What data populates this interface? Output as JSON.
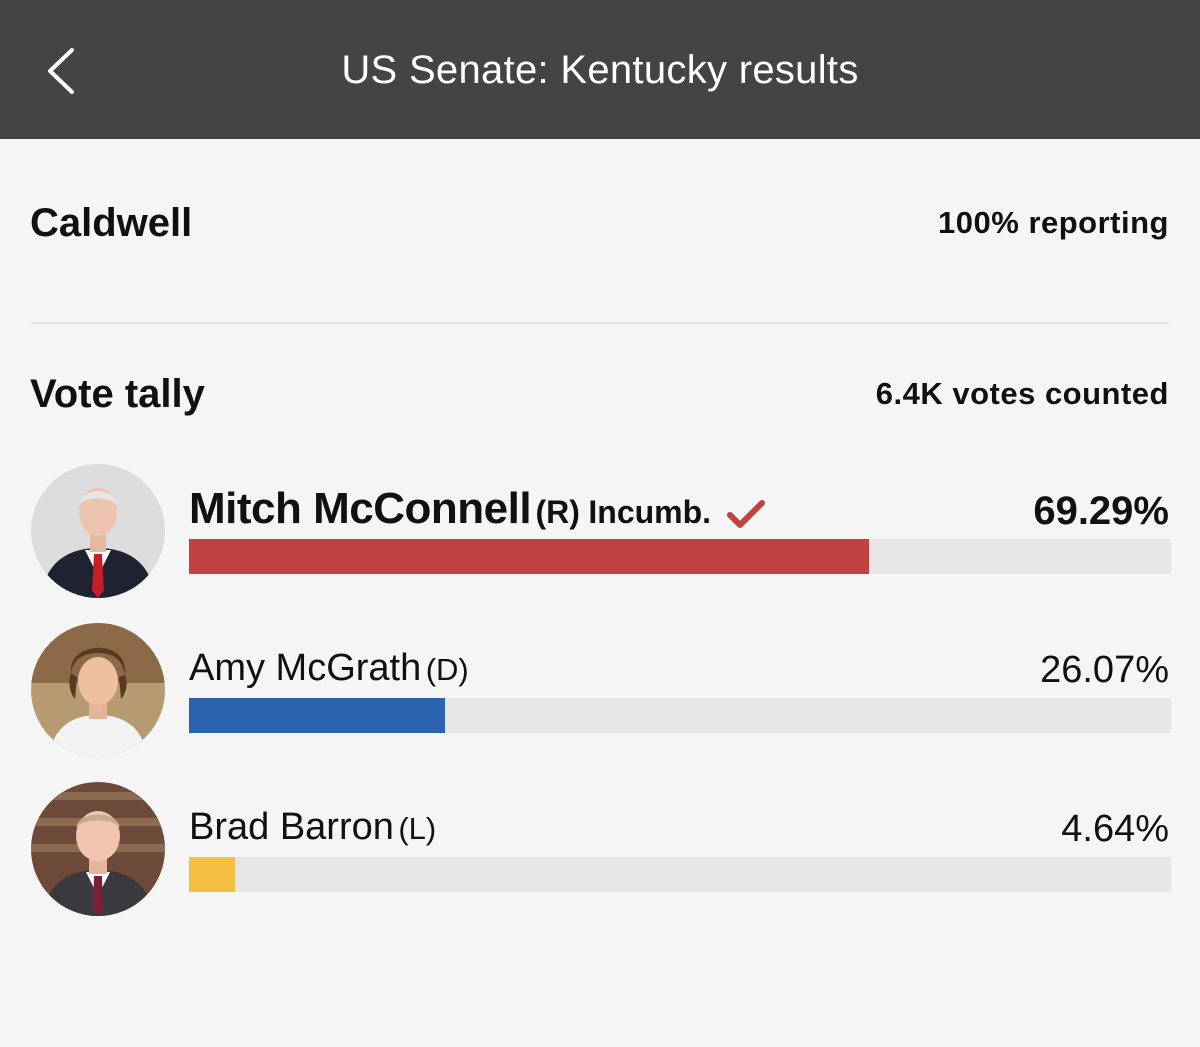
{
  "header": {
    "title": "US Senate: Kentucky results"
  },
  "county": {
    "name": "Caldwell",
    "reporting": "100% reporting"
  },
  "tally": {
    "title": "Vote tally",
    "votes_counted": "6.4K votes counted"
  },
  "candidates": [
    {
      "name": "Mitch McConnell",
      "party": "(R)",
      "incumbent_label": "Incumb.",
      "winner": true,
      "percent_label": "69.29%",
      "percent": 69.29,
      "color": "#c24141"
    },
    {
      "name": "Amy McGrath",
      "party": "(D)",
      "percent_label": "26.07%",
      "percent": 26.07,
      "color": "#2b63b0"
    },
    {
      "name": "Brad Barron",
      "party": "(L)",
      "percent_label": "4.64%",
      "percent": 4.64,
      "color": "#f5c040"
    }
  ],
  "icons": {
    "back": "chevron-left-icon",
    "winner": "checkmark-icon"
  },
  "colors": {
    "header_bg": "#444444",
    "page_bg": "#f5f5f5",
    "track": "#e6e6e6"
  }
}
